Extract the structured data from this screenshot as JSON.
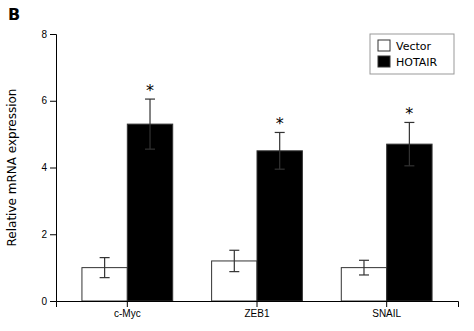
{
  "chart_data": {
    "type": "bar",
    "title": "B",
    "categories": [
      "c-Myc",
      "ZEB1",
      "SNAIL"
    ],
    "series": [
      {
        "name": "Vector",
        "color": "white",
        "values": [
          1.0,
          1.2,
          1.0
        ],
        "errors": [
          0.3,
          0.32,
          0.22
        ]
      },
      {
        "name": "HOTAIR",
        "color": "black",
        "values": [
          5.3,
          4.5,
          4.7
        ],
        "errors": [
          0.75,
          0.55,
          0.65
        ]
      }
    ],
    "annotations": [
      "*",
      "*",
      "*"
    ],
    "y_label": "Relative mRNA expression",
    "ylim": [
      0,
      8
    ],
    "yticks": [
      0,
      2,
      4,
      6,
      8
    ],
    "legend": "upper right"
  }
}
